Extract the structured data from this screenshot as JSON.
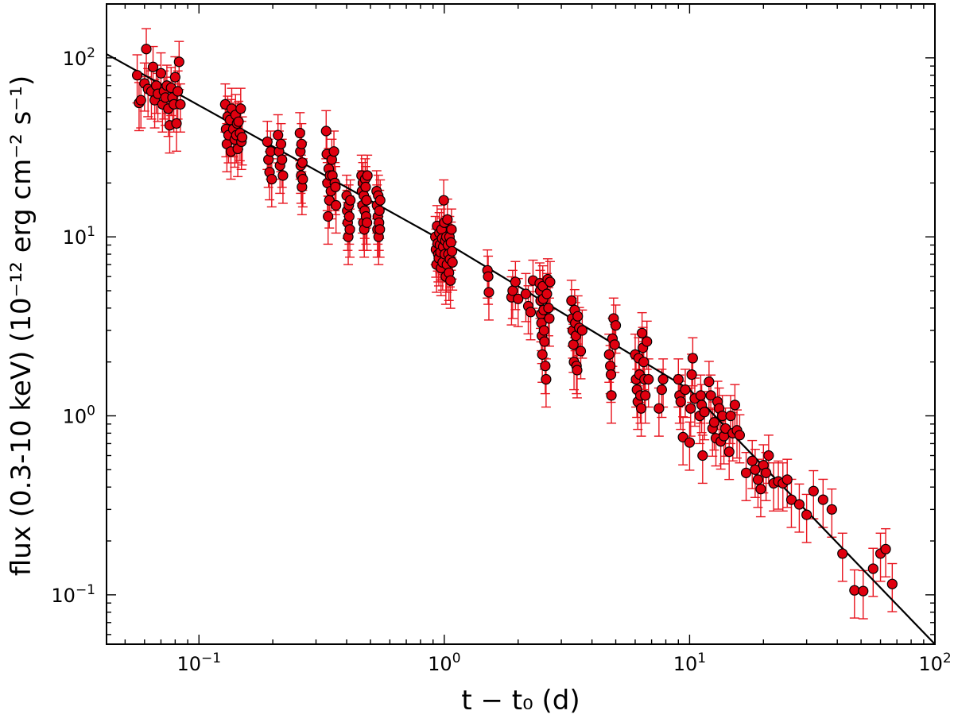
{
  "chart_data": {
    "type": "scatter",
    "title": "",
    "xlabel": "t − t₀ (d)",
    "ylabel": "flux (0.3-10 keV) (10⁻¹² erg cm⁻² s⁻¹)",
    "xscale": "log",
    "yscale": "log",
    "xlim": [
      0.042,
      100
    ],
    "ylim": [
      0.053,
      200
    ],
    "grid": false,
    "legend": "none",
    "colors": {
      "marker_fill": "#e0000f",
      "marker_edge": "#000000",
      "errorbar": "#e8141e",
      "fit_line": "#000000"
    },
    "x_ticks": [
      {
        "value": 0.1,
        "mantissa": "10",
        "exp": "−1"
      },
      {
        "value": 1,
        "mantissa": "10",
        "exp": "0"
      },
      {
        "value": 10,
        "mantissa": "10",
        "exp": "1"
      },
      {
        "value": 100,
        "mantissa": "10",
        "exp": "2"
      }
    ],
    "y_ticks": [
      {
        "value": 0.1,
        "mantissa": "10",
        "exp": "−1"
      },
      {
        "value": 1,
        "mantissa": "10",
        "exp": "0"
      },
      {
        "value": 10,
        "mantissa": "10",
        "exp": "1"
      },
      {
        "value": 100,
        "mantissa": "10",
        "exp": "2"
      }
    ],
    "fit_line": {
      "description": "broken power law",
      "points": [
        [
          0.042,
          105
        ],
        [
          1.0,
          9.4
        ],
        [
          10.0,
          1.4
        ],
        [
          100.0,
          0.053
        ]
      ]
    },
    "series": [
      {
        "error_frac": 0.3,
        "points": [
          [
            0.056,
            80
          ],
          [
            0.057,
            56
          ],
          [
            0.058,
            58
          ],
          [
            0.06,
            72
          ],
          [
            0.061,
            112
          ],
          [
            0.062,
            67
          ],
          [
            0.064,
            65
          ],
          [
            0.065,
            89
          ],
          [
            0.066,
            58
          ],
          [
            0.067,
            70
          ],
          [
            0.068,
            63
          ],
          [
            0.07,
            82
          ],
          [
            0.071,
            55
          ],
          [
            0.072,
            65
          ],
          [
            0.073,
            60
          ],
          [
            0.074,
            70
          ],
          [
            0.075,
            52
          ],
          [
            0.076,
            42
          ],
          [
            0.077,
            68
          ],
          [
            0.078,
            60
          ],
          [
            0.079,
            55
          ],
          [
            0.08,
            78
          ],
          [
            0.081,
            43
          ],
          [
            0.082,
            65
          ],
          [
            0.083,
            95
          ],
          [
            0.084,
            55
          ],
          [
            0.128,
            55
          ],
          [
            0.129,
            40
          ],
          [
            0.13,
            33
          ],
          [
            0.131,
            47
          ],
          [
            0.132,
            37
          ],
          [
            0.134,
            45
          ],
          [
            0.135,
            30
          ],
          [
            0.136,
            52
          ],
          [
            0.138,
            40
          ],
          [
            0.14,
            35
          ],
          [
            0.141,
            48
          ],
          [
            0.142,
            37
          ],
          [
            0.143,
            43
          ],
          [
            0.144,
            31
          ],
          [
            0.145,
            44
          ],
          [
            0.147,
            38
          ],
          [
            0.148,
            52
          ],
          [
            0.149,
            34
          ],
          [
            0.15,
            36
          ],
          [
            0.19,
            34
          ],
          [
            0.192,
            27
          ],
          [
            0.194,
            23
          ],
          [
            0.196,
            30
          ],
          [
            0.198,
            21
          ],
          [
            0.21,
            37
          ],
          [
            0.212,
            30
          ],
          [
            0.214,
            25
          ],
          [
            0.216,
            33
          ],
          [
            0.218,
            27
          ],
          [
            0.22,
            22
          ],
          [
            0.258,
            38
          ],
          [
            0.259,
            30
          ],
          [
            0.26,
            25
          ],
          [
            0.261,
            22
          ],
          [
            0.262,
            33
          ],
          [
            0.263,
            19
          ],
          [
            0.264,
            26
          ],
          [
            0.265,
            21
          ],
          [
            0.33,
            39
          ],
          [
            0.332,
            29
          ],
          [
            0.334,
            20
          ],
          [
            0.336,
            13
          ],
          [
            0.338,
            24
          ],
          [
            0.34,
            16
          ],
          [
            0.342,
            22
          ],
          [
            0.345,
            18
          ],
          [
            0.348,
            27
          ],
          [
            0.35,
            22
          ],
          [
            0.355,
            30
          ],
          [
            0.358,
            20
          ],
          [
            0.36,
            19
          ],
          [
            0.362,
            15
          ],
          [
            0.4,
            17
          ],
          [
            0.402,
            14
          ],
          [
            0.404,
            12
          ],
          [
            0.406,
            10
          ],
          [
            0.408,
            15
          ],
          [
            0.41,
            13
          ],
          [
            0.412,
            11
          ],
          [
            0.414,
            16
          ],
          [
            0.46,
            22
          ],
          [
            0.462,
            18
          ],
          [
            0.464,
            15
          ],
          [
            0.466,
            20
          ],
          [
            0.468,
            12
          ],
          [
            0.47,
            17
          ],
          [
            0.472,
            11
          ],
          [
            0.474,
            14
          ],
          [
            0.476,
            21
          ],
          [
            0.478,
            19
          ],
          [
            0.48,
            13
          ],
          [
            0.482,
            16
          ],
          [
            0.484,
            12
          ],
          [
            0.486,
            22
          ],
          [
            0.53,
            18
          ],
          [
            0.532,
            15
          ],
          [
            0.534,
            11
          ],
          [
            0.536,
            13
          ],
          [
            0.538,
            17
          ],
          [
            0.54,
            10
          ],
          [
            0.542,
            12
          ],
          [
            0.544,
            14
          ],
          [
            0.546,
            11
          ],
          [
            0.548,
            16
          ],
          [
            0.92,
            10
          ],
          [
            0.925,
            8.5
          ],
          [
            0.93,
            7.0
          ],
          [
            0.935,
            11.5
          ],
          [
            0.94,
            9.2
          ],
          [
            0.945,
            8.0
          ],
          [
            0.95,
            7.6
          ],
          [
            0.955,
            10.5
          ],
          [
            0.96,
            9.0
          ],
          [
            0.965,
            8.2
          ],
          [
            0.97,
            6.7
          ],
          [
            0.975,
            11.0
          ],
          [
            0.98,
            9.8
          ],
          [
            0.985,
            7.2
          ],
          [
            0.99,
            8.8
          ],
          [
            0.995,
            16.0
          ],
          [
            1.0,
            12.0
          ],
          [
            1.005,
            8.0
          ],
          [
            1.01,
            9.5
          ],
          [
            1.015,
            6.0
          ],
          [
            1.02,
            10.0
          ],
          [
            1.025,
            7.0
          ],
          [
            1.03,
            12.5
          ],
          [
            1.035,
            9.0
          ],
          [
            1.04,
            8.0
          ],
          [
            1.045,
            6.3
          ],
          [
            1.05,
            10.0
          ],
          [
            1.055,
            7.5
          ],
          [
            1.06,
            5.7
          ],
          [
            1.065,
            9.3
          ],
          [
            1.07,
            11.0
          ],
          [
            1.075,
            8.3
          ],
          [
            1.08,
            7.2
          ],
          [
            1.5,
            6.5
          ],
          [
            1.51,
            6.0
          ],
          [
            1.52,
            4.9
          ],
          [
            1.88,
            4.6
          ],
          [
            1.9,
            5.0
          ],
          [
            1.95,
            5.6
          ],
          [
            2.0,
            4.5
          ],
          [
            2.15,
            4.8
          ],
          [
            2.2,
            4.1
          ],
          [
            2.25,
            3.8
          ],
          [
            2.3,
            5.7
          ],
          [
            2.45,
            5.5
          ],
          [
            2.46,
            5.0
          ],
          [
            2.47,
            4.4
          ],
          [
            2.48,
            3.7
          ],
          [
            2.49,
            3.3
          ],
          [
            2.5,
            2.8
          ],
          [
            2.51,
            2.2
          ],
          [
            2.52,
            5.3
          ],
          [
            2.53,
            4.5
          ],
          [
            2.54,
            3.9
          ],
          [
            2.55,
            3.0
          ],
          [
            2.56,
            2.6
          ],
          [
            2.58,
            1.9
          ],
          [
            2.6,
            1.6
          ],
          [
            2.62,
            4.8
          ],
          [
            2.64,
            5.8
          ],
          [
            2.66,
            4.0
          ],
          [
            2.68,
            3.5
          ],
          [
            2.7,
            5.6
          ],
          [
            3.3,
            4.4
          ],
          [
            3.32,
            3.5
          ],
          [
            3.34,
            3.0
          ],
          [
            3.36,
            2.5
          ],
          [
            3.38,
            2.0
          ],
          [
            3.4,
            3.9
          ],
          [
            3.42,
            3.3
          ],
          [
            3.44,
            2.8
          ],
          [
            3.46,
            1.9
          ],
          [
            3.48,
            1.8
          ],
          [
            3.5,
            3.6
          ],
          [
            3.55,
            3.1
          ],
          [
            3.6,
            2.3
          ],
          [
            3.65,
            3.0
          ],
          [
            4.7,
            2.2
          ],
          [
            4.75,
            1.9
          ],
          [
            4.78,
            1.7
          ],
          [
            4.8,
            1.3
          ],
          [
            4.85,
            2.7
          ],
          [
            4.9,
            3.5
          ],
          [
            4.95,
            2.5
          ],
          [
            5.0,
            3.2
          ],
          [
            6.0,
            2.2
          ],
          [
            6.05,
            1.6
          ],
          [
            6.1,
            1.4
          ],
          [
            6.15,
            1.2
          ],
          [
            6.2,
            2.1
          ],
          [
            6.25,
            1.7
          ],
          [
            6.3,
            1.3
          ],
          [
            6.35,
            1.1
          ],
          [
            6.4,
            2.9
          ],
          [
            6.45,
            2.4
          ],
          [
            6.5,
            2.0
          ],
          [
            6.55,
            1.6
          ],
          [
            6.6,
            1.3
          ],
          [
            6.7,
            2.6
          ],
          [
            6.8,
            1.6
          ],
          [
            7.5,
            1.1
          ],
          [
            7.7,
            1.4
          ],
          [
            7.8,
            1.6
          ],
          [
            9.0,
            1.6
          ],
          [
            9.1,
            1.3
          ],
          [
            9.2,
            1.2
          ],
          [
            9.4,
            0.76
          ],
          [
            9.6,
            1.4
          ],
          [
            10.0,
            0.71
          ],
          [
            10.1,
            1.1
          ],
          [
            10.2,
            1.7
          ],
          [
            10.3,
            2.1
          ],
          [
            10.5,
            1.25
          ],
          [
            11.0,
            1.0
          ],
          [
            11.1,
            1.3
          ],
          [
            11.2,
            1.15
          ],
          [
            11.3,
            0.6
          ],
          [
            11.5,
            1.05
          ],
          [
            12.0,
            1.55
          ],
          [
            12.2,
            1.3
          ],
          [
            12.4,
            0.85
          ],
          [
            12.6,
            0.92
          ],
          [
            12.8,
            0.75
          ],
          [
            13.0,
            1.2
          ],
          [
            13.2,
            1.1
          ],
          [
            13.4,
            0.72
          ],
          [
            13.6,
            1.0
          ],
          [
            13.8,
            0.77
          ],
          [
            14.0,
            0.85
          ],
          [
            14.5,
            0.63
          ],
          [
            14.7,
            1.0
          ],
          [
            15.0,
            0.8
          ],
          [
            15.3,
            1.15
          ],
          [
            15.6,
            0.83
          ],
          [
            16.0,
            0.78
          ],
          [
            17.0,
            0.48
          ],
          [
            18.0,
            0.56
          ],
          [
            18.5,
            0.5
          ],
          [
            19.0,
            0.44
          ],
          [
            19.5,
            0.39
          ],
          [
            20.0,
            0.53
          ],
          [
            20.5,
            0.48
          ],
          [
            21.0,
            0.6
          ],
          [
            22.0,
            0.42
          ],
          [
            23.0,
            0.43
          ],
          [
            24.0,
            0.42
          ],
          [
            25.0,
            0.44
          ],
          [
            26.0,
            0.34
          ],
          [
            28.0,
            0.32
          ],
          [
            30.0,
            0.28
          ],
          [
            32.0,
            0.38
          ],
          [
            35.0,
            0.34
          ],
          [
            38.0,
            0.3
          ],
          [
            42.0,
            0.17
          ],
          [
            47.0,
            0.106
          ],
          [
            51.0,
            0.105
          ],
          [
            56.0,
            0.14
          ],
          [
            60.0,
            0.17
          ],
          [
            63.0,
            0.18
          ],
          [
            67.0,
            0.115
          ]
        ]
      }
    ]
  }
}
